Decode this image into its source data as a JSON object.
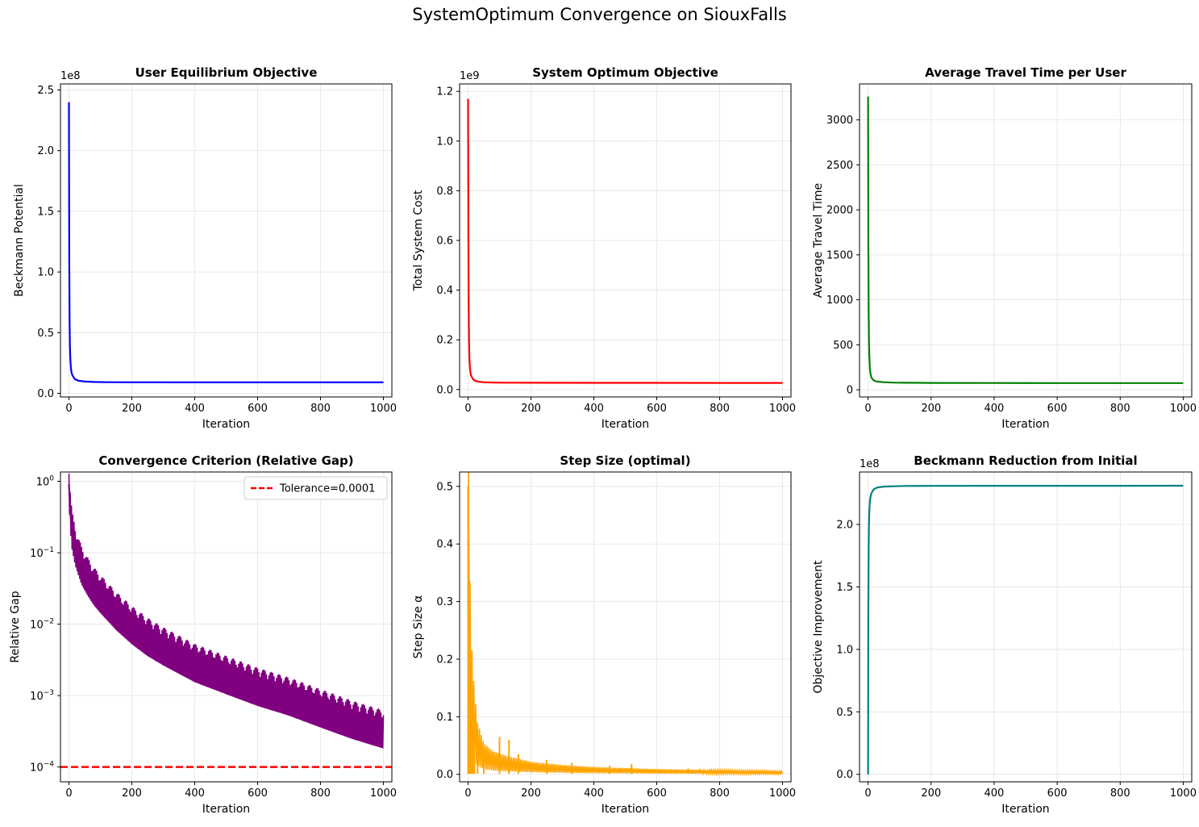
{
  "figure": {
    "title": "SystemOptimum Convergence on SiouxFalls"
  },
  "chart_data": [
    {
      "type": "line",
      "title": "User Equilibrium Objective",
      "xlabel": "Iteration",
      "ylabel": "Beckmann Potential",
      "y_offset_label": "1e8",
      "xlim": [
        -27,
        1027
      ],
      "ylim": [
        -0.03,
        2.55
      ],
      "xticks": [
        0,
        200,
        400,
        600,
        800,
        1000
      ],
      "yticks": [
        0.0,
        0.5,
        1.0,
        1.5,
        2.0,
        2.5
      ],
      "ytick_labels": [
        "0.0",
        "0.5",
        "1.0",
        "1.5",
        "2.0",
        "2.5"
      ],
      "grid": true,
      "color": "#0000ff",
      "series": [
        {
          "x": [
            0,
            1,
            2,
            3,
            4,
            6,
            8,
            10,
            15,
            20,
            30,
            50,
            80,
            120,
            200,
            400,
            600,
            800,
            1000
          ],
          "y": [
            2.4,
            1.1,
            0.6,
            0.4,
            0.3,
            0.21,
            0.175,
            0.155,
            0.13,
            0.115,
            0.104,
            0.097,
            0.094,
            0.092,
            0.091,
            0.0905,
            0.0903,
            0.0902,
            0.0901
          ]
        }
      ]
    },
    {
      "type": "line",
      "title": "System Optimum Objective",
      "xlabel": "Iteration",
      "ylabel": "Total System Cost",
      "y_offset_label": "1e9",
      "xlim": [
        -27,
        1027
      ],
      "ylim": [
        -0.03,
        1.23
      ],
      "xticks": [
        0,
        200,
        400,
        600,
        800,
        1000
      ],
      "yticks": [
        0.0,
        0.2,
        0.4,
        0.6,
        0.8,
        1.0,
        1.2
      ],
      "ytick_labels": [
        "0.0",
        "0.2",
        "0.4",
        "0.6",
        "0.8",
        "1.0",
        "1.2"
      ],
      "grid": true,
      "color": "#ff0000",
      "series": [
        {
          "x": [
            0,
            1,
            2,
            3,
            4,
            6,
            8,
            10,
            15,
            20,
            30,
            50,
            80,
            120,
            200,
            400,
            600,
            800,
            1000
          ],
          "y": [
            1.17,
            0.62,
            0.32,
            0.2,
            0.13,
            0.085,
            0.065,
            0.055,
            0.043,
            0.037,
            0.032,
            0.029,
            0.028,
            0.0275,
            0.027,
            0.0268,
            0.0267,
            0.0266,
            0.0266
          ]
        }
      ]
    },
    {
      "type": "line",
      "title": "Average Travel Time per User",
      "xlabel": "Iteration",
      "ylabel": "Average Travel Time",
      "y_offset_label": "",
      "xlim": [
        -27,
        1027
      ],
      "ylim": [
        -80,
        3400
      ],
      "xticks": [
        0,
        200,
        400,
        600,
        800,
        1000
      ],
      "yticks": [
        0,
        500,
        1000,
        1500,
        2000,
        2500,
        3000
      ],
      "ytick_labels": [
        "0",
        "500",
        "1000",
        "1500",
        "2000",
        "2500",
        "3000"
      ],
      "grid": true,
      "color": "#008000",
      "series": [
        {
          "x": [
            0,
            1,
            2,
            3,
            4,
            6,
            8,
            10,
            15,
            20,
            30,
            50,
            80,
            120,
            200,
            400,
            600,
            800,
            1000
          ],
          "y": [
            3260,
            1700,
            900,
            550,
            380,
            230,
            170,
            140,
            115,
            100,
            90,
            84,
            80,
            78,
            76,
            75,
            74,
            74,
            74
          ]
        }
      ]
    },
    {
      "type": "line",
      "title": "Convergence Criterion (Relative Gap)",
      "xlabel": "Iteration",
      "ylabel": "Relative Gap",
      "y_scale": "log",
      "xlim": [
        -27,
        1027
      ],
      "ylim": [
        6.2e-05,
        1.35
      ],
      "xticks": [
        0,
        200,
        400,
        600,
        800,
        1000
      ],
      "yticks": [
        0.0001,
        0.001,
        0.01,
        0.1,
        1
      ],
      "ytick_labels": [
        "10^-4",
        "10^-3",
        "10^-2",
        "10^-1",
        "10^0"
      ],
      "grid": true,
      "color": "#800080",
      "legend": {
        "entries": [
          "Tolerance=0.0001"
        ],
        "placement": "upper right"
      },
      "hline": {
        "y": 0.0001,
        "label": "Tolerance=0.0001",
        "color": "#ff0000",
        "style": "dashed"
      },
      "noise_band": {
        "lower_factor": 0.55,
        "upper_factor": 1.9
      },
      "series": [
        {
          "x": [
            0,
            5,
            10,
            20,
            40,
            60,
            80,
            100,
            150,
            200,
            250,
            300,
            400,
            500,
            600,
            700,
            800,
            900,
            1000
          ],
          "y": [
            0.9,
            0.35,
            0.2,
            0.12,
            0.065,
            0.045,
            0.033,
            0.026,
            0.015,
            0.0095,
            0.0065,
            0.0048,
            0.0028,
            0.0019,
            0.0013,
            0.00095,
            0.00065,
            0.00045,
            0.00033
          ]
        }
      ]
    },
    {
      "type": "line",
      "title": "Step Size (optimal)",
      "xlabel": "Iteration",
      "ylabel": "Step Size α",
      "y_offset_label": "",
      "xlim": [
        -27,
        1027
      ],
      "ylim": [
        -0.013,
        0.525
      ],
      "xticks": [
        0,
        200,
        400,
        600,
        800,
        1000
      ],
      "yticks": [
        0.0,
        0.1,
        0.2,
        0.3,
        0.4,
        0.5
      ],
      "ytick_labels": [
        "0.0",
        "0.1",
        "0.2",
        "0.3",
        "0.4",
        "0.5"
      ],
      "grid": true,
      "color": "#ffa500",
      "spikes": [
        [
          0,
          0.5
        ],
        [
          2,
          0.3
        ],
        [
          5,
          0.21
        ],
        [
          8,
          0.14
        ],
        [
          12,
          0.21
        ],
        [
          15,
          0.1
        ],
        [
          20,
          0.09
        ],
        [
          30,
          0.06
        ],
        [
          50,
          0.04
        ],
        [
          100,
          0.065
        ],
        [
          130,
          0.06
        ],
        [
          160,
          0.035
        ],
        [
          250,
          0.025
        ],
        [
          330,
          0.02
        ],
        [
          450,
          0.015
        ],
        [
          520,
          0.018
        ],
        [
          700,
          0.01
        ],
        [
          900,
          0.008
        ]
      ],
      "series": [
        {
          "x": [
            0,
            5,
            10,
            20,
            30,
            50,
            80,
            120,
            200,
            300,
            400,
            600,
            800,
            1000
          ],
          "y": [
            0.5,
            0.2,
            0.13,
            0.08,
            0.05,
            0.03,
            0.022,
            0.018,
            0.012,
            0.009,
            0.007,
            0.005,
            0.004,
            0.003
          ]
        }
      ]
    },
    {
      "type": "line",
      "title": "Beckmann Reduction from Initial",
      "xlabel": "Iteration",
      "ylabel": "Objective Improvement",
      "y_offset_label": "1e8",
      "xlim": [
        -27,
        1027
      ],
      "ylim": [
        -0.06,
        2.42
      ],
      "xticks": [
        0,
        200,
        400,
        600,
        800,
        1000
      ],
      "yticks": [
        0.0,
        0.5,
        1.0,
        1.5,
        2.0
      ],
      "ytick_labels": [
        "0.0",
        "0.5",
        "1.0",
        "1.5",
        "2.0"
      ],
      "grid": true,
      "color": "#008080",
      "series": [
        {
          "x": [
            0,
            1,
            2,
            3,
            4,
            6,
            8,
            10,
            15,
            20,
            30,
            50,
            80,
            120,
            200,
            400,
            600,
            800,
            1000
          ],
          "y": [
            0.0,
            1.3,
            1.8,
            2.0,
            2.1,
            2.19,
            2.225,
            2.245,
            2.27,
            2.285,
            2.296,
            2.303,
            2.306,
            2.308,
            2.309,
            2.3095,
            2.3097,
            2.3098,
            2.3099
          ]
        }
      ]
    }
  ]
}
